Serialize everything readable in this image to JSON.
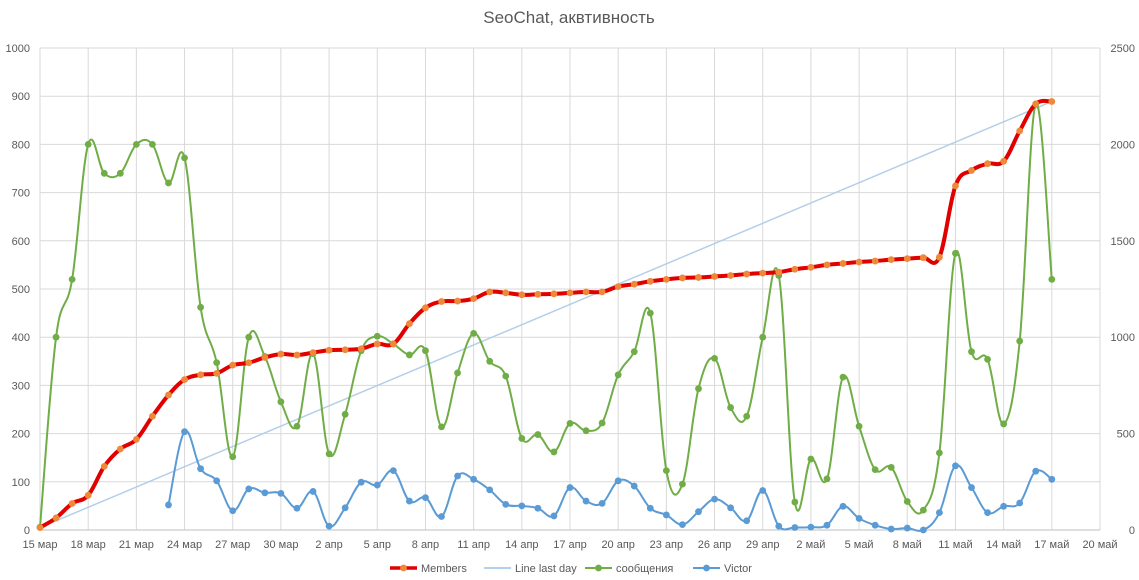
{
  "chart_data": {
    "type": "line",
    "title": "SeoChat, аквтивность",
    "x_start": "2024-03-15",
    "x_end": "2024-05-20",
    "x_tick_labels": [
      "15 мар",
      "18 мар",
      "21 мар",
      "24 мар",
      "27 мар",
      "30 мар",
      "2 апр",
      "5 апр",
      "8 апр",
      "11 апр",
      "14 апр",
      "17 апр",
      "20 апр",
      "23 апр",
      "26 апр",
      "29 апр",
      "2 май",
      "5 май",
      "8 май",
      "11 май",
      "14 май",
      "17 май",
      "20 май"
    ],
    "y_left": {
      "min": 0,
      "max": 1000,
      "ticks": [
        "0",
        "100",
        "200",
        "300",
        "400",
        "500",
        "600",
        "700",
        "800",
        "900",
        "1000"
      ]
    },
    "y_right": {
      "min": 0,
      "max": 2500,
      "ticks": [
        "0",
        "500",
        "1000",
        "1500",
        "2000",
        "2500"
      ]
    },
    "grid": true,
    "legend_position": "bottom",
    "series": [
      {
        "name": "Members",
        "axis": "left",
        "color": "#e00000",
        "marker_color": "#f0883a",
        "smooth": true,
        "width": 4,
        "points": [
          [
            "2024-03-15",
            5
          ],
          [
            "2024-03-16",
            25
          ],
          [
            "2024-03-17",
            55
          ],
          [
            "2024-03-18",
            72
          ],
          [
            "2024-03-19",
            132
          ],
          [
            "2024-03-20",
            168
          ],
          [
            "2024-03-21",
            188
          ],
          [
            "2024-03-22",
            236
          ],
          [
            "2024-03-23",
            280
          ],
          [
            "2024-03-24",
            312
          ],
          [
            "2024-03-25",
            322
          ],
          [
            "2024-03-26",
            325
          ],
          [
            "2024-03-27",
            342
          ],
          [
            "2024-03-28",
            347
          ],
          [
            "2024-03-29",
            358
          ],
          [
            "2024-03-30",
            365
          ],
          [
            "2024-03-31",
            363
          ],
          [
            "2024-04-01",
            368
          ],
          [
            "2024-04-02",
            373
          ],
          [
            "2024-04-03",
            374
          ],
          [
            "2024-04-04",
            376
          ],
          [
            "2024-04-05",
            386
          ],
          [
            "2024-04-06",
            386
          ],
          [
            "2024-04-07",
            428
          ],
          [
            "2024-04-08",
            461
          ],
          [
            "2024-04-09",
            474
          ],
          [
            "2024-04-10",
            475
          ],
          [
            "2024-04-11",
            480
          ],
          [
            "2024-04-12",
            494
          ],
          [
            "2024-04-13",
            492
          ],
          [
            "2024-04-14",
            488
          ],
          [
            "2024-04-15",
            489
          ],
          [
            "2024-04-16",
            490
          ],
          [
            "2024-04-17",
            492
          ],
          [
            "2024-04-18",
            494
          ],
          [
            "2024-04-19",
            494
          ],
          [
            "2024-04-20",
            505
          ],
          [
            "2024-04-21",
            510
          ],
          [
            "2024-04-22",
            516
          ],
          [
            "2024-04-23",
            520
          ],
          [
            "2024-04-24",
            523
          ],
          [
            "2024-04-25",
            524
          ],
          [
            "2024-04-26",
            526
          ],
          [
            "2024-04-27",
            528
          ],
          [
            "2024-04-28",
            531
          ],
          [
            "2024-04-29",
            533
          ],
          [
            "2024-04-30",
            535
          ],
          [
            "2024-05-01",
            541
          ],
          [
            "2024-05-02",
            545
          ],
          [
            "2024-05-03",
            550
          ],
          [
            "2024-05-04",
            553
          ],
          [
            "2024-05-05",
            556
          ],
          [
            "2024-05-06",
            558
          ],
          [
            "2024-05-07",
            561
          ],
          [
            "2024-05-08",
            563
          ],
          [
            "2024-05-09",
            565
          ],
          [
            "2024-05-10",
            566
          ],
          [
            "2024-05-11",
            714
          ],
          [
            "2024-05-12",
            746
          ],
          [
            "2024-05-13",
            760
          ],
          [
            "2024-05-14",
            765
          ],
          [
            "2024-05-15",
            828
          ],
          [
            "2024-05-16",
            884
          ],
          [
            "2024-05-17",
            889
          ]
        ]
      },
      {
        "name": "Line last day",
        "axis": "left",
        "color": "#b4cfe9",
        "smooth": false,
        "width": 1.5,
        "points": [
          [
            "2024-03-15",
            5
          ],
          [
            "2024-05-17",
            889
          ]
        ]
      },
      {
        "name": "сообщения",
        "axis": "right",
        "color": "#70ad47",
        "marker_color": "#70ad47",
        "smooth": true,
        "width": 2,
        "points": [
          [
            "2024-03-15",
            15
          ],
          [
            "2024-03-16",
            1000
          ],
          [
            "2024-03-17",
            1300
          ],
          [
            "2024-03-18",
            2000
          ],
          [
            "2024-03-19",
            1850
          ],
          [
            "2024-03-20",
            1850
          ],
          [
            "2024-03-21",
            2000
          ],
          [
            "2024-03-22",
            2000
          ],
          [
            "2024-03-23",
            1800
          ],
          [
            "2024-03-24",
            1930
          ],
          [
            "2024-03-25",
            1155
          ],
          [
            "2024-03-26",
            868
          ],
          [
            "2024-03-27",
            380
          ],
          [
            "2024-03-28",
            1000
          ],
          [
            "2024-03-29",
            900
          ],
          [
            "2024-03-30",
            665
          ],
          [
            "2024-03-31",
            538
          ],
          [
            "2024-04-01",
            915
          ],
          [
            "2024-04-02",
            395
          ],
          [
            "2024-04-03",
            600
          ],
          [
            "2024-04-04",
            930
          ],
          [
            "2024-04-05",
            1005
          ],
          [
            "2024-04-06",
            965
          ],
          [
            "2024-04-07",
            908
          ],
          [
            "2024-04-08",
            930
          ],
          [
            "2024-04-09",
            535
          ],
          [
            "2024-04-10",
            815
          ],
          [
            "2024-04-11",
            1020
          ],
          [
            "2024-04-12",
            875
          ],
          [
            "2024-04-13",
            798
          ],
          [
            "2024-04-14",
            475
          ],
          [
            "2024-04-15",
            495
          ],
          [
            "2024-04-16",
            405
          ],
          [
            "2024-04-17",
            553
          ],
          [
            "2024-04-18",
            515
          ],
          [
            "2024-04-19",
            555
          ],
          [
            "2024-04-20",
            805
          ],
          [
            "2024-04-21",
            925
          ],
          [
            "2024-04-22",
            1125
          ],
          [
            "2024-04-23",
            308
          ],
          [
            "2024-04-24",
            238
          ],
          [
            "2024-04-25",
            733
          ],
          [
            "2024-04-26",
            890
          ],
          [
            "2024-04-27",
            635
          ],
          [
            "2024-04-28",
            590
          ],
          [
            "2024-04-29",
            1000
          ],
          [
            "2024-04-30",
            1320
          ],
          [
            "2024-05-01",
            145
          ],
          [
            "2024-05-02",
            368
          ],
          [
            "2024-05-03",
            265
          ],
          [
            "2024-05-04",
            793
          ],
          [
            "2024-05-05",
            538
          ],
          [
            "2024-05-06",
            313
          ],
          [
            "2024-05-07",
            325
          ],
          [
            "2024-05-08",
            148
          ],
          [
            "2024-05-09",
            103
          ],
          [
            "2024-05-10",
            400
          ],
          [
            "2024-05-11",
            1435
          ],
          [
            "2024-05-12",
            925
          ],
          [
            "2024-05-13",
            885
          ],
          [
            "2024-05-14",
            550
          ],
          [
            "2024-05-15",
            980
          ],
          [
            "2024-05-16",
            2210
          ],
          [
            "2024-05-17",
            1300
          ]
        ]
      },
      {
        "name": "Victor",
        "axis": "right",
        "color": "#5b9bd5",
        "marker_color": "#5b9bd5",
        "smooth": true,
        "width": 2,
        "points": [
          [
            "2024-03-23",
            130
          ],
          [
            "2024-03-24",
            510
          ],
          [
            "2024-03-25",
            318
          ],
          [
            "2024-03-26",
            255
          ],
          [
            "2024-03-27",
            100
          ],
          [
            "2024-03-28",
            213
          ],
          [
            "2024-03-29",
            193
          ],
          [
            "2024-03-30",
            190
          ],
          [
            "2024-03-31",
            113
          ],
          [
            "2024-04-01",
            200
          ],
          [
            "2024-04-02",
            20
          ],
          [
            "2024-04-03",
            115
          ],
          [
            "2024-04-04",
            248
          ],
          [
            "2024-04-05",
            233
          ],
          [
            "2024-04-06",
            308
          ],
          [
            "2024-04-07",
            150
          ],
          [
            "2024-04-08",
            168
          ],
          [
            "2024-04-09",
            70
          ],
          [
            "2024-04-10",
            280
          ],
          [
            "2024-04-11",
            263
          ],
          [
            "2024-04-12",
            208
          ],
          [
            "2024-04-13",
            133
          ],
          [
            "2024-04-14",
            125
          ],
          [
            "2024-04-15",
            113
          ],
          [
            "2024-04-16",
            73
          ],
          [
            "2024-04-17",
            220
          ],
          [
            "2024-04-18",
            150
          ],
          [
            "2024-04-19",
            138
          ],
          [
            "2024-04-20",
            255
          ],
          [
            "2024-04-21",
            228
          ],
          [
            "2024-04-22",
            113
          ],
          [
            "2024-04-23",
            78
          ],
          [
            "2024-04-24",
            28
          ],
          [
            "2024-04-25",
            95
          ],
          [
            "2024-04-26",
            160
          ],
          [
            "2024-04-27",
            115
          ],
          [
            "2024-04-28",
            48
          ],
          [
            "2024-04-29",
            205
          ],
          [
            "2024-04-30",
            20
          ],
          [
            "2024-05-01",
            13
          ],
          [
            "2024-05-02",
            15
          ],
          [
            "2024-05-03",
            25
          ],
          [
            "2024-05-04",
            123
          ],
          [
            "2024-05-05",
            60
          ],
          [
            "2024-05-06",
            25
          ],
          [
            "2024-05-07",
            5
          ],
          [
            "2024-05-08",
            10
          ],
          [
            "2024-05-09",
            0
          ],
          [
            "2024-05-10",
            90
          ],
          [
            "2024-05-11",
            333
          ],
          [
            "2024-05-12",
            220
          ],
          [
            "2024-05-13",
            90
          ],
          [
            "2024-05-14",
            123
          ],
          [
            "2024-05-15",
            140
          ],
          [
            "2024-05-16",
            305
          ],
          [
            "2024-05-17",
            263
          ]
        ]
      }
    ]
  }
}
